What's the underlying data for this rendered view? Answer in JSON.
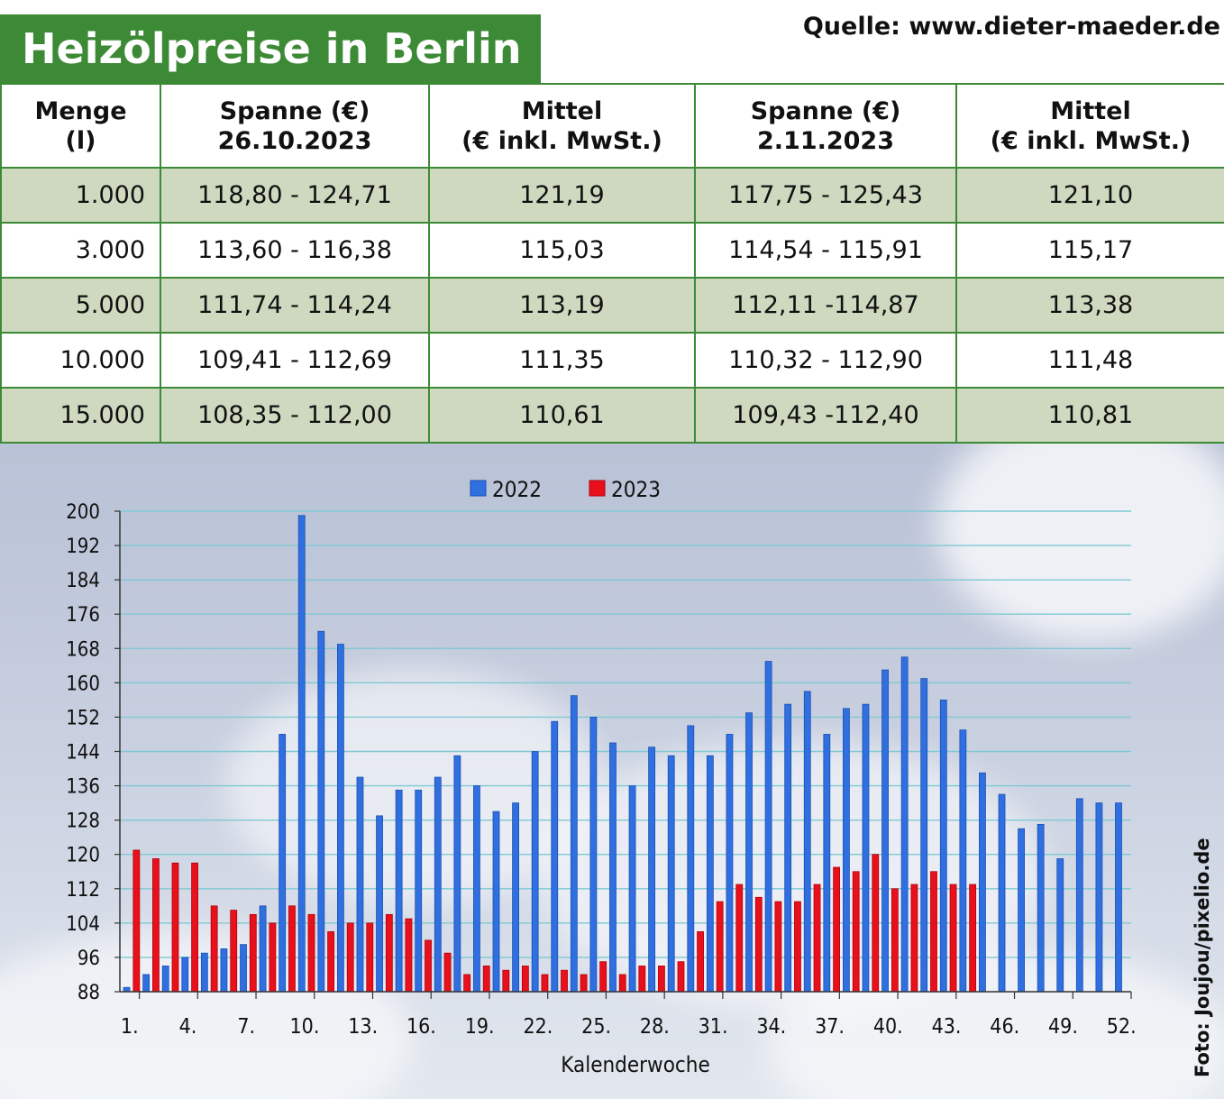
{
  "header": {
    "title": "Heizölpreise in Berlin",
    "source": "Quelle: www.dieter-maeder.de"
  },
  "table": {
    "headers": [
      [
        "Menge",
        "(l)"
      ],
      [
        "Spanne (€)",
        "26.10.2023"
      ],
      [
        "Mittel",
        "(€ inkl. MwSt.)"
      ],
      [
        "Spanne (€)",
        "2.11.2023"
      ],
      [
        "Mittel",
        "(€ inkl. MwSt.)"
      ]
    ],
    "rows": [
      [
        "1.000",
        "118,80 - 124,71",
        "121,19",
        "117,75 - 125,43",
        "121,10"
      ],
      [
        "3.000",
        "113,60 - 116,38",
        "115,03",
        "114,54 - 115,91",
        "115,17"
      ],
      [
        "5.000",
        "111,74 - 114,24",
        "113,19",
        "112,11 -114,87",
        "113,38"
      ],
      [
        "10.000",
        "109,41 - 112,69",
        "111,35",
        "110,32 - 112,90",
        "111,48"
      ],
      [
        "15.000",
        "108,35 - 112,00",
        "110,61",
        "109,43 -112,40",
        "110,81"
      ]
    ]
  },
  "chart_data": {
    "type": "bar",
    "xlabel": "Kalenderwoche",
    "ylabel": "",
    "ylim": [
      88,
      200
    ],
    "yticks": [
      88,
      96,
      104,
      112,
      120,
      128,
      136,
      144,
      152,
      160,
      168,
      176,
      184,
      192,
      200
    ],
    "xtick_labels": [
      "1.",
      "4.",
      "7.",
      "10.",
      "13.",
      "16.",
      "19.",
      "22.",
      "25.",
      "28.",
      "31.",
      "34.",
      "37.",
      "40.",
      "43.",
      "46.",
      "49.",
      "52."
    ],
    "xtick_weeks": [
      1,
      4,
      7,
      10,
      13,
      16,
      19,
      22,
      25,
      28,
      31,
      34,
      37,
      40,
      43,
      46,
      49,
      52
    ],
    "weeks": 52,
    "grid": true,
    "legend_position": "top",
    "series": [
      {
        "name": "2022",
        "color": "#2f6fe0",
        "values": [
          89,
          92,
          94,
          96,
          97,
          98,
          99,
          108,
          148,
          199,
          172,
          169,
          138,
          129,
          135,
          135,
          138,
          143,
          136,
          130,
          132,
          144,
          151,
          157,
          152,
          146,
          136,
          145,
          143,
          150,
          143,
          148,
          153,
          165,
          155,
          158,
          148,
          154,
          155,
          163,
          166,
          161,
          156,
          149,
          139,
          134,
          126,
          127,
          119,
          133,
          132,
          132
        ]
      },
      {
        "name": "2023",
        "color": "#e8101a",
        "values": [
          121,
          119,
          118,
          118,
          108,
          107,
          106,
          104,
          108,
          106,
          102,
          104,
          104,
          106,
          105,
          100,
          97,
          92,
          94,
          93,
          94,
          92,
          93,
          92,
          95,
          92,
          94,
          94,
          95,
          102,
          109,
          113,
          110,
          109,
          109,
          113,
          117,
          116,
          120,
          112,
          113,
          116,
          113,
          113
        ]
      }
    ]
  },
  "photo_credit": "Foto: Joujou/pixelio.de"
}
